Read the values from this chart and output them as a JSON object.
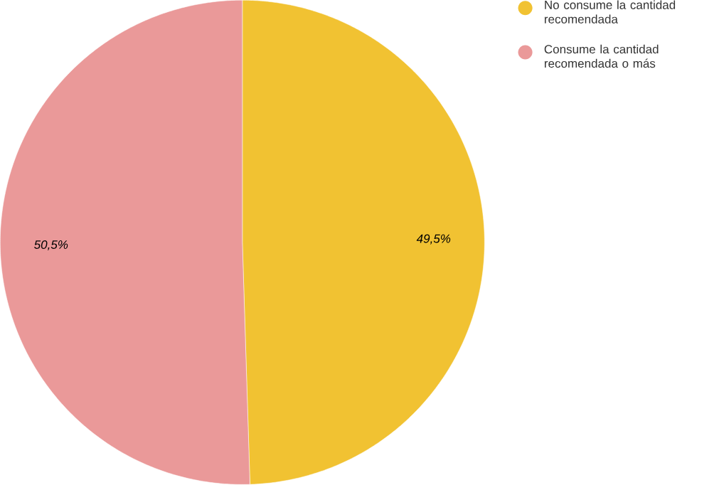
{
  "chart_data": {
    "type": "pie",
    "categories": [
      "No consume la cantidad recomendada",
      "Consume la cantidad recomendada o más"
    ],
    "values": [
      49.5,
      50.5
    ],
    "colors": [
      "#f1c232",
      "#ea9999"
    ],
    "value_labels": [
      "49,5%",
      "50,5%"
    ],
    "legend": "top right"
  }
}
